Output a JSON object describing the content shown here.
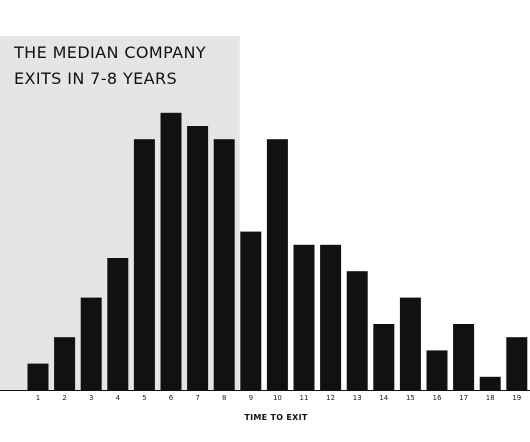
{
  "chart_data": {
    "type": "bar",
    "title_lines": [
      "THE MEDIAN COMPANY",
      "EXITS IN 7-8 YEARS"
    ],
    "xlabel": "TIME TO EXIT",
    "ylabel": "",
    "categories": [
      "1",
      "2",
      "3",
      "4",
      "5",
      "6",
      "7",
      "8",
      "9",
      "10",
      "11",
      "12",
      "13",
      "14",
      "15",
      "16",
      "17",
      "18",
      "19"
    ],
    "values": [
      2,
      4,
      7,
      10,
      19,
      21,
      20,
      19,
      12,
      19,
      11,
      11,
      9,
      5,
      7,
      3,
      5,
      1,
      4
    ],
    "ylim": [
      0,
      22
    ],
    "grid": false,
    "legend": "none",
    "highlight_region": {
      "from_category": "1",
      "to_category": "8",
      "color": "#e5e5e5"
    },
    "bar_color": "#111111"
  }
}
